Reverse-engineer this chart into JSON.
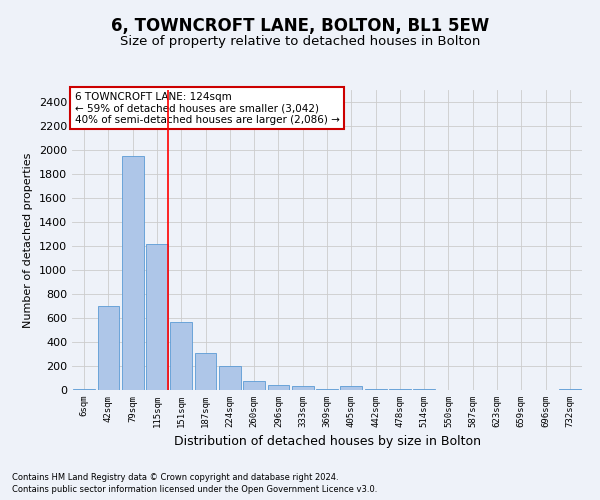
{
  "title": "6, TOWNCROFT LANE, BOLTON, BL1 5EW",
  "subtitle": "Size of property relative to detached houses in Bolton",
  "xlabel": "Distribution of detached houses by size in Bolton",
  "ylabel": "Number of detached properties",
  "bar_labels": [
    "6sqm",
    "42sqm",
    "79sqm",
    "115sqm",
    "151sqm",
    "187sqm",
    "224sqm",
    "260sqm",
    "296sqm",
    "333sqm",
    "369sqm",
    "405sqm",
    "442sqm",
    "478sqm",
    "514sqm",
    "550sqm",
    "587sqm",
    "623sqm",
    "659sqm",
    "696sqm",
    "732sqm"
  ],
  "bar_values": [
    10,
    700,
    1950,
    1220,
    570,
    310,
    200,
    75,
    40,
    30,
    5,
    30,
    5,
    5,
    10,
    0,
    0,
    0,
    0,
    0,
    10
  ],
  "bar_color": "#aec6e8",
  "bar_edge_color": "#5b9bd5",
  "ylim": [
    0,
    2500
  ],
  "yticks": [
    0,
    200,
    400,
    600,
    800,
    1000,
    1200,
    1400,
    1600,
    1800,
    2000,
    2200,
    2400
  ],
  "property_line_x": 3.45,
  "annotation_title": "6 TOWNCROFT LANE: 124sqm",
  "annotation_line1": "← 59% of detached houses are smaller (3,042)",
  "annotation_line2": "40% of semi-detached houses are larger (2,086) →",
  "footer_line1": "Contains HM Land Registry data © Crown copyright and database right 2024.",
  "footer_line2": "Contains public sector information licensed under the Open Government Licence v3.0.",
  "background_color": "#eef2f9",
  "grid_color": "#cccccc",
  "annotation_box_color": "#ffffff",
  "annotation_box_edge": "#cc0000",
  "title_fontsize": 12,
  "subtitle_fontsize": 9.5,
  "ylabel_fontsize": 8,
  "xlabel_fontsize": 9,
  "ytick_fontsize": 8,
  "xtick_fontsize": 6.5,
  "footer_fontsize": 6,
  "annot_fontsize": 7.5
}
